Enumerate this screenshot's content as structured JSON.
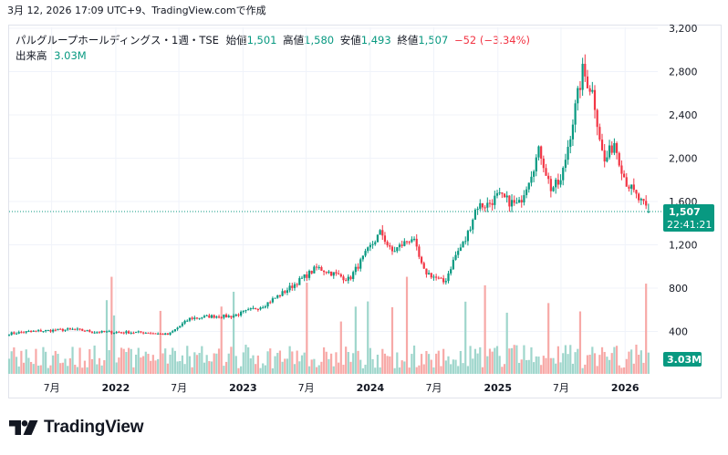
{
  "caption": "3月 12, 2026 17:09 UTC+9、TradingView.comで作成",
  "legend": {
    "symbol": "パルグループホールディングス・1週・TSE",
    "open_label": "始値",
    "open": "1,501",
    "high_label": "高値",
    "high": "1,580",
    "low_label": "安値",
    "low": "1,493",
    "close_label": "終値",
    "close": "1,507",
    "change": "−52 (−3.34%)",
    "volume_label": "出来高",
    "volume": "3.03M"
  },
  "price_tag": {
    "price": "1,507",
    "countdown": "22:41:21"
  },
  "volume_tag": "3.03M",
  "logo_text": "TradingView",
  "colors": {
    "up": "#089981",
    "down": "#f23645",
    "up_vol": "#9fd6cc",
    "down_vol": "#f7a9a7",
    "text": "#131722",
    "grid": "#f0f3fa"
  },
  "chart_data": {
    "type": "candlestick",
    "interval": "1W",
    "exchange": "TSE",
    "y_axis": {
      "ticks": [
        400,
        800,
        1200,
        1600,
        2000,
        2400,
        2800,
        3200
      ],
      "tick_labels": [
        "400",
        "800",
        "1,200",
        "1,600",
        "2,000",
        "2,400",
        "2,800",
        "3,200"
      ],
      "position": "right"
    },
    "x_axis": {
      "tick_labels": [
        "7月",
        "2022",
        "7月",
        "2023",
        "7月",
        "2024",
        "7月",
        "2025",
        "7月",
        "2026"
      ],
      "tick_dates": [
        "2021-07",
        "2022-01",
        "2022-07",
        "2023-01",
        "2023-07",
        "2024-01",
        "2024-07",
        "2025-01",
        "2025-07",
        "2026-01"
      ]
    },
    "last_bar": {
      "open": 1501,
      "high": 1580,
      "low": 1493,
      "close": 1507,
      "volume": "3.03M"
    },
    "close_path": [
      {
        "date": "2021-03",
        "close": 380
      },
      {
        "date": "2021-05",
        "close": 400
      },
      {
        "date": "2021-09",
        "close": 420
      },
      {
        "date": "2021-11",
        "close": 395
      },
      {
        "date": "2022-04",
        "close": 390
      },
      {
        "date": "2022-06",
        "close": 370
      },
      {
        "date": "2022-08",
        "close": 520
      },
      {
        "date": "2022-10",
        "close": 540
      },
      {
        "date": "2022-12",
        "close": 540
      },
      {
        "date": "2023-03",
        "close": 640
      },
      {
        "date": "2023-05",
        "close": 770
      },
      {
        "date": "2023-08",
        "close": 990
      },
      {
        "date": "2023-11",
        "close": 880
      },
      {
        "date": "2024-01",
        "close": 1180
      },
      {
        "date": "2024-02",
        "close": 1320
      },
      {
        "date": "2024-03",
        "close": 1130
      },
      {
        "date": "2024-05",
        "close": 1270
      },
      {
        "date": "2024-06",
        "close": 960
      },
      {
        "date": "2024-08",
        "close": 850
      },
      {
        "date": "2024-09",
        "close": 1100
      },
      {
        "date": "2024-10",
        "close": 1250
      },
      {
        "date": "2024-11",
        "close": 1560
      },
      {
        "date": "2024-12",
        "close": 1570
      },
      {
        "date": "2025-01",
        "close": 1650
      },
      {
        "date": "2025-03",
        "close": 1560
      },
      {
        "date": "2025-05",
        "close": 2080
      },
      {
        "date": "2025-06",
        "close": 1720
      },
      {
        "date": "2025-07",
        "close": 1780
      },
      {
        "date": "2025-08",
        "close": 2300
      },
      {
        "date": "2025-09",
        "close": 2800
      },
      {
        "date": "2025-10",
        "close": 2600
      },
      {
        "date": "2025-11",
        "close": 1950
      },
      {
        "date": "2025-12",
        "close": 2150
      },
      {
        "date": "2026-01",
        "close": 1800
      },
      {
        "date": "2026-02",
        "close": 1650
      },
      {
        "date": "2026-03",
        "close": 1507
      }
    ]
  }
}
